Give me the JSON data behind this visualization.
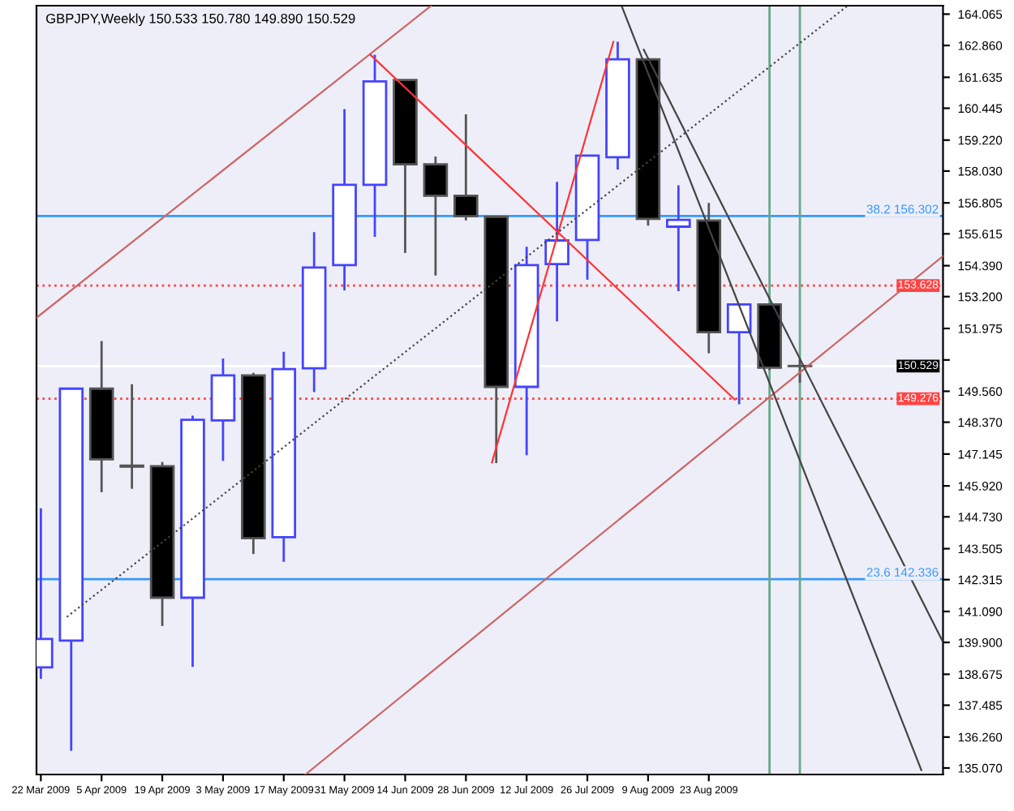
{
  "chart_data": {
    "type": "candlestick",
    "title": "GBPJPY,Weekly 150.533 150.780 149.890 150.529",
    "x": [
      "2009-03-22",
      "2009-03-29",
      "2009-04-05",
      "2009-04-12",
      "2009-04-19",
      "2009-04-26",
      "2009-05-03",
      "2009-05-10",
      "2009-05-17",
      "2009-05-24",
      "2009-05-31",
      "2009-06-07",
      "2009-06-14",
      "2009-06-21",
      "2009-06-28",
      "2009-07-05",
      "2009-07-12",
      "2009-07-19",
      "2009-07-26",
      "2009-08-02",
      "2009-08-09",
      "2009-08-16",
      "2009-08-23",
      "2009-08-30",
      "2009-09-06",
      "2009-09-13"
    ],
    "ohlc": [
      [
        138.94,
        145.06,
        138.5,
        140.03
      ],
      [
        139.97,
        149.7,
        135.73,
        149.66
      ],
      [
        149.66,
        151.49,
        145.68,
        146.94
      ],
      [
        146.7,
        149.83,
        145.81,
        146.66
      ],
      [
        146.68,
        146.84,
        140.53,
        141.62
      ],
      [
        141.62,
        148.62,
        138.96,
        148.46
      ],
      [
        148.44,
        150.82,
        146.88,
        150.17
      ],
      [
        150.17,
        150.27,
        143.3,
        143.91
      ],
      [
        143.95,
        151.08,
        143.0,
        150.41
      ],
      [
        150.44,
        155.68,
        149.53,
        154.32
      ],
      [
        154.41,
        160.41,
        153.44,
        157.5
      ],
      [
        157.5,
        162.5,
        155.5,
        161.48
      ],
      [
        161.53,
        161.53,
        154.88,
        158.29
      ],
      [
        158.29,
        158.59,
        154.01,
        157.08
      ],
      [
        157.08,
        160.21,
        156.13,
        156.29
      ],
      [
        156.27,
        156.3,
        146.8,
        149.73
      ],
      [
        149.73,
        155.12,
        147.1,
        154.41
      ],
      [
        154.45,
        157.61,
        152.25,
        155.36
      ],
      [
        155.38,
        158.62,
        153.85,
        158.62
      ],
      [
        158.56,
        163.0,
        158.09,
        162.33
      ],
      [
        162.33,
        162.33,
        155.93,
        156.19
      ],
      [
        155.89,
        157.48,
        153.41,
        156.15
      ],
      [
        156.13,
        156.8,
        151.02,
        151.83
      ],
      [
        151.83,
        152.9,
        149.06,
        152.9
      ],
      [
        152.9,
        152.95,
        150.37,
        150.47
      ],
      [
        150.533,
        150.78,
        149.89,
        150.529
      ]
    ],
    "series": [
      {
        "type": "line",
        "color": "#cc6666",
        "x": [
          "2009-03-21",
          "2009-06-20"
        ],
        "values": [
          152.39,
          164.39
        ]
      },
      {
        "type": "line",
        "color": "#cc6666",
        "x": [
          "2009-05-22",
          "2009-10-16"
        ],
        "values": [
          134.82,
          154.76
        ]
      },
      {
        "type": "line",
        "color": "#ff3333",
        "x": [
          "2009-06-06",
          "2009-08-29"
        ],
        "values": [
          162.5,
          149.24
        ]
      },
      {
        "type": "line",
        "color": "#ff3333",
        "x": [
          "2009-07-04",
          "2009-08-01"
        ],
        "values": [
          146.82,
          163.0
        ]
      },
      {
        "type": "line",
        "color": "#444444",
        "line_style": "dotted",
        "x": [
          "2009-03-28",
          "2009-09-24"
        ],
        "values": [
          140.88,
          164.39
        ]
      },
      {
        "type": "line",
        "color": "#444444",
        "x": [
          "2009-08-03",
          "2009-10-11"
        ],
        "values": [
          164.34,
          134.99
        ]
      },
      {
        "type": "line",
        "color": "#444444",
        "x": [
          "2009-08-08",
          "2009-10-16"
        ],
        "values": [
          162.7,
          139.91
        ]
      }
    ],
    "ref_lines": [
      {
        "axis": "y",
        "value": 156.302,
        "label": "38.2 156.302",
        "color": "#3399ff"
      },
      {
        "axis": "y",
        "value": 142.336,
        "label": "23.6 142.336",
        "color": "#3399ff"
      },
      {
        "axis": "y",
        "value": 153.628,
        "label": "153.628",
        "color": "#ff4444",
        "line_style": "dotted"
      },
      {
        "axis": "y",
        "value": 149.276,
        "label": "149.276",
        "color": "#ff4444",
        "line_style": "dotted"
      },
      {
        "axis": "y",
        "value": 150.529,
        "label": "150.529",
        "color": "#ffffff"
      },
      {
        "axis": "x",
        "value": "2009-09-06",
        "color": "#66aa88"
      },
      {
        "axis": "x",
        "value": "2009-09-13",
        "color": "#66aa88"
      }
    ],
    "xlim": [
      "2009-03-21",
      "2009-10-16"
    ],
    "xticks": [
      {
        "value": "2009-03-22",
        "label": "22 Mar 2009"
      },
      {
        "value": "2009-04-05",
        "label": "5 Apr 2009"
      },
      {
        "value": "2009-04-19",
        "label": "19 Apr 2009"
      },
      {
        "value": "2009-05-03",
        "label": "3 May 2009"
      },
      {
        "value": "2009-05-17",
        "label": "17 May 2009"
      },
      {
        "value": "2009-05-31",
        "label": "31 May 2009"
      },
      {
        "value": "2009-06-14",
        "label": "14 Jun 2009"
      },
      {
        "value": "2009-06-28",
        "label": "28 Jun 2009"
      },
      {
        "value": "2009-07-12",
        "label": "12 Jul 2009"
      },
      {
        "value": "2009-07-26",
        "label": "26 Jul 2009"
      },
      {
        "value": "2009-08-09",
        "label": "9 Aug 2009"
      },
      {
        "value": "2009-08-23",
        "label": "23 Aug 2009"
      }
    ],
    "ylim": [
      134.82,
      164.39
    ],
    "yticks": [
      {
        "value": 164.065,
        "label": "164.065"
      },
      {
        "value": 162.86,
        "label": "162.860"
      },
      {
        "value": 161.635,
        "label": "161.635"
      },
      {
        "value": 160.445,
        "label": "160.445"
      },
      {
        "value": 159.22,
        "label": "159.220"
      },
      {
        "value": 158.03,
        "label": "158.030"
      },
      {
        "value": 156.805,
        "label": "156.805"
      },
      {
        "value": 155.615,
        "label": "155.615"
      },
      {
        "value": 154.39,
        "label": "154.390"
      },
      {
        "value": 153.2,
        "label": "153.200"
      },
      {
        "value": 151.975,
        "label": "151.975"
      },
      {
        "value": 150.765,
        "label": null
      },
      {
        "value": 149.56,
        "label": "149.560"
      },
      {
        "value": 148.37,
        "label": "148.370"
      },
      {
        "value": 147.145,
        "label": "147.145"
      },
      {
        "value": 145.92,
        "label": "145.920"
      },
      {
        "value": 144.73,
        "label": "144.730"
      },
      {
        "value": 143.505,
        "label": "143.505"
      },
      {
        "value": 142.315,
        "label": "142.315"
      },
      {
        "value": 141.09,
        "label": "141.090"
      },
      {
        "value": 139.9,
        "label": "139.900"
      },
      {
        "value": 138.675,
        "label": "138.675"
      },
      {
        "value": 137.485,
        "label": "137.485"
      },
      {
        "value": 136.26,
        "label": "136.260"
      },
      {
        "value": 135.07,
        "label": "135.070"
      }
    ],
    "grid": false,
    "legend": false
  }
}
